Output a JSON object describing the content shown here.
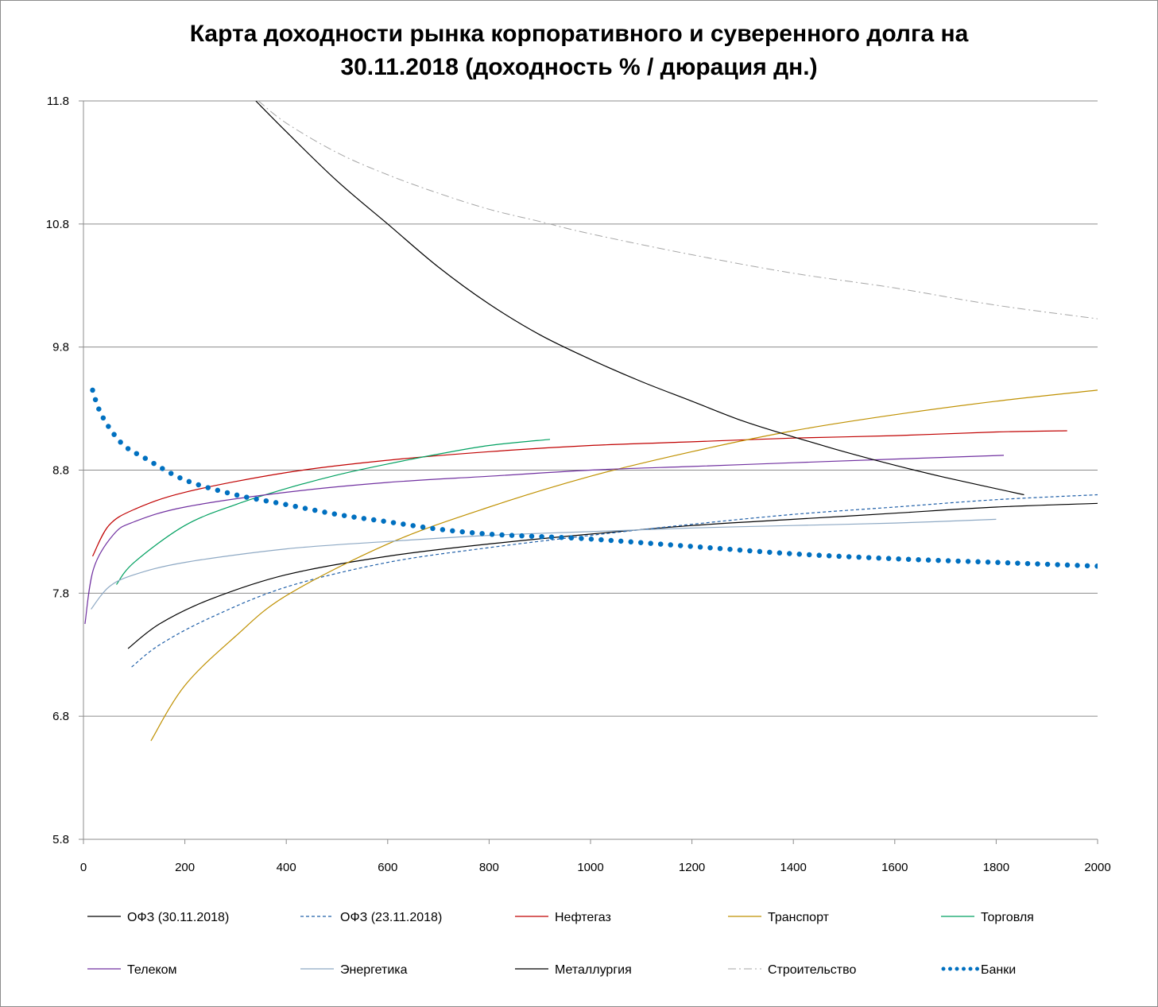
{
  "chart_data": {
    "type": "line",
    "title_line1": "Карта доходности рынка корпоративного и суверенного долга на",
    "title_line2": "30.11.2018 (доходность % / дюрация дн.)",
    "xlabel": "",
    "ylabel": "",
    "xlim": [
      0,
      2000
    ],
    "ylim": [
      5.8,
      11.8
    ],
    "x_ticks": [
      "0",
      "200",
      "400",
      "600",
      "800",
      "1000",
      "1200",
      "1400",
      "1600",
      "1800",
      "2000"
    ],
    "y_ticks": [
      "5.8",
      "6.8",
      "7.8",
      "8.8",
      "9.8",
      "10.8",
      "11.8"
    ],
    "grid": "horizontal",
    "legend_position": "bottom",
    "series": [
      {
        "name": "ОФЗ (30.11.2018)",
        "color": "#000000",
        "style": "solid",
        "points": [
          [
            88,
            7.35
          ],
          [
            150,
            7.55
          ],
          [
            250,
            7.75
          ],
          [
            400,
            7.95
          ],
          [
            600,
            8.1
          ],
          [
            800,
            8.2
          ],
          [
            1000,
            8.28
          ],
          [
            1200,
            8.35
          ],
          [
            1400,
            8.4
          ],
          [
            1600,
            8.45
          ],
          [
            1800,
            8.5
          ],
          [
            2000,
            8.53
          ]
        ]
      },
      {
        "name": "ОФЗ (23.11.2018)",
        "color": "#1f5fa8",
        "style": "dash",
        "points": [
          [
            95,
            7.2
          ],
          [
            150,
            7.38
          ],
          [
            250,
            7.6
          ],
          [
            400,
            7.85
          ],
          [
            600,
            8.05
          ],
          [
            800,
            8.17
          ],
          [
            1000,
            8.27
          ],
          [
            1200,
            8.36
          ],
          [
            1400,
            8.44
          ],
          [
            1600,
            8.5
          ],
          [
            1800,
            8.56
          ],
          [
            2000,
            8.6
          ]
        ]
      },
      {
        "name": "Нефтегаз",
        "color": "#c00000",
        "style": "solid",
        "points": [
          [
            18,
            8.1
          ],
          [
            50,
            8.35
          ],
          [
            100,
            8.48
          ],
          [
            200,
            8.62
          ],
          [
            400,
            8.78
          ],
          [
            600,
            8.88
          ],
          [
            800,
            8.95
          ],
          [
            1000,
            9.0
          ],
          [
            1200,
            9.03
          ],
          [
            1400,
            9.06
          ],
          [
            1600,
            9.08
          ],
          [
            1800,
            9.11
          ],
          [
            1940,
            9.12
          ]
        ]
      },
      {
        "name": "Транспорт",
        "color": "#bf9000",
        "style": "solid",
        "points": [
          [
            133,
            6.6
          ],
          [
            200,
            7.05
          ],
          [
            300,
            7.45
          ],
          [
            400,
            7.78
          ],
          [
            600,
            8.2
          ],
          [
            800,
            8.5
          ],
          [
            1000,
            8.75
          ],
          [
            1200,
            8.95
          ],
          [
            1400,
            9.12
          ],
          [
            1600,
            9.25
          ],
          [
            1800,
            9.36
          ],
          [
            2000,
            9.45
          ]
        ]
      },
      {
        "name": "Торговля",
        "color": "#00a060",
        "style": "solid",
        "points": [
          [
            65,
            7.87
          ],
          [
            100,
            8.05
          ],
          [
            200,
            8.35
          ],
          [
            300,
            8.52
          ],
          [
            400,
            8.65
          ],
          [
            500,
            8.76
          ],
          [
            600,
            8.85
          ],
          [
            700,
            8.93
          ],
          [
            800,
            9.0
          ],
          [
            920,
            9.05
          ]
        ]
      },
      {
        "name": "Телеком",
        "color": "#7030a0",
        "style": "solid",
        "points": [
          [
            3,
            7.55
          ],
          [
            20,
            8.0
          ],
          [
            60,
            8.28
          ],
          [
            100,
            8.38
          ],
          [
            200,
            8.5
          ],
          [
            400,
            8.62
          ],
          [
            600,
            8.7
          ],
          [
            800,
            8.75
          ],
          [
            1000,
            8.8
          ],
          [
            1200,
            8.83
          ],
          [
            1400,
            8.86
          ],
          [
            1600,
            8.89
          ],
          [
            1815,
            8.92
          ]
        ]
      },
      {
        "name": "Энергетика",
        "color": "#8ea9c4",
        "style": "solid",
        "points": [
          [
            15,
            7.67
          ],
          [
            50,
            7.85
          ],
          [
            100,
            7.95
          ],
          [
            200,
            8.05
          ],
          [
            400,
            8.16
          ],
          [
            600,
            8.22
          ],
          [
            800,
            8.27
          ],
          [
            1000,
            8.3
          ],
          [
            1200,
            8.33
          ],
          [
            1400,
            8.35
          ],
          [
            1600,
            8.37
          ],
          [
            1800,
            8.4
          ]
        ]
      },
      {
        "name": "Металлургия",
        "color": "#000000",
        "style": "solid",
        "points": [
          [
            340,
            11.8
          ],
          [
            400,
            11.55
          ],
          [
            500,
            11.15
          ],
          [
            600,
            10.8
          ],
          [
            700,
            10.45
          ],
          [
            800,
            10.15
          ],
          [
            900,
            9.9
          ],
          [
            1000,
            9.7
          ],
          [
            1100,
            9.52
          ],
          [
            1200,
            9.36
          ],
          [
            1300,
            9.2
          ],
          [
            1400,
            9.07
          ],
          [
            1500,
            8.95
          ],
          [
            1600,
            8.84
          ],
          [
            1700,
            8.74
          ],
          [
            1855,
            8.6
          ]
        ]
      },
      {
        "name": "Строительство",
        "color": "#a6a6a6",
        "style": "dashdot",
        "points": [
          [
            345,
            11.8
          ],
          [
            400,
            11.62
          ],
          [
            500,
            11.38
          ],
          [
            600,
            11.2
          ],
          [
            700,
            11.05
          ],
          [
            800,
            10.92
          ],
          [
            900,
            10.82
          ],
          [
            1000,
            10.72
          ],
          [
            1200,
            10.55
          ],
          [
            1400,
            10.4
          ],
          [
            1600,
            10.28
          ],
          [
            1800,
            10.14
          ],
          [
            2000,
            10.03
          ]
        ]
      },
      {
        "name": "Банки",
        "color": "#0070c0",
        "style": "dot",
        "points": [
          [
            18,
            9.45
          ],
          [
            30,
            9.3
          ],
          [
            50,
            9.15
          ],
          [
            80,
            9.0
          ],
          [
            120,
            8.9
          ],
          [
            200,
            8.72
          ],
          [
            300,
            8.6
          ],
          [
            400,
            8.52
          ],
          [
            500,
            8.44
          ],
          [
            600,
            8.38
          ],
          [
            700,
            8.32
          ],
          [
            800,
            8.28
          ],
          [
            900,
            8.26
          ],
          [
            1000,
            8.24
          ],
          [
            1200,
            8.18
          ],
          [
            1400,
            8.12
          ],
          [
            1600,
            8.08
          ],
          [
            1800,
            8.05
          ],
          [
            2000,
            8.02
          ]
        ]
      }
    ]
  }
}
